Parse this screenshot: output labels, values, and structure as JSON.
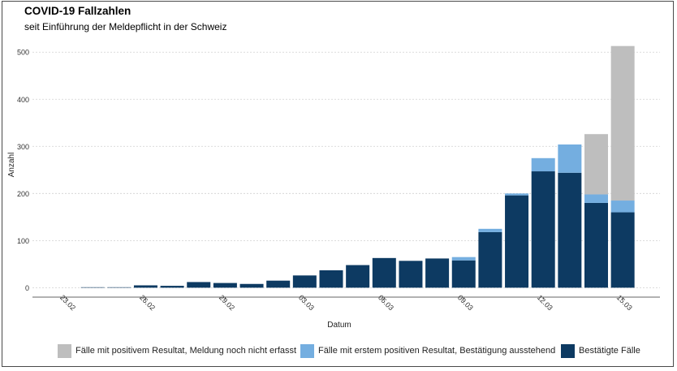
{
  "chart_data": {
    "type": "bar",
    "stacked": true,
    "title": "COVID-19 Fallzahlen",
    "subtitle": "seit Einführung der Meldepflicht in der Schweiz",
    "xlabel": "Datum",
    "ylabel": "Anzahl",
    "ylim": [
      -20,
      540
    ],
    "yticks": [
      0,
      100,
      200,
      300,
      400,
      500
    ],
    "grid": true,
    "legend_position": "bottom",
    "categories": [
      "23.02",
      "24.02",
      "25.02",
      "26.02",
      "27.02",
      "28.02",
      "29.02",
      "01.03",
      "02.03",
      "03.03",
      "04.03",
      "05.03",
      "06.03",
      "07.03",
      "08.03",
      "09.03",
      "10.03",
      "11.03",
      "12.03",
      "13.03",
      "14.03",
      "15.03"
    ],
    "xtick_labels": [
      "23.02",
      "26.02",
      "29.02",
      "03.03",
      "06.03",
      "09.03",
      "12.03",
      "15.03"
    ],
    "series": [
      {
        "name": "Bestätigte Fälle",
        "color": "#0d3a62",
        "values": [
          0,
          1,
          1,
          5,
          4,
          12,
          10,
          8,
          15,
          26,
          37,
          48,
          63,
          57,
          62,
          58,
          118,
          196,
          247,
          244,
          180,
          160
        ]
      },
      {
        "name": "Fälle mit erstem positiven Resultat, Bestätigung ausstehend",
        "color": "#74aee0",
        "values": [
          0,
          0,
          0,
          0,
          0,
          0,
          0,
          0,
          0,
          0,
          0,
          0,
          0,
          0,
          0,
          7,
          7,
          4,
          28,
          60,
          18,
          25
        ]
      },
      {
        "name": "Fälle mit positivem Resultat, Meldung noch nicht erfasst",
        "color": "#bebebe",
        "values": [
          0,
          0,
          0,
          0,
          0,
          0,
          0,
          0,
          0,
          0,
          0,
          0,
          0,
          0,
          0,
          0,
          0,
          0,
          0,
          0,
          128,
          328
        ]
      }
    ]
  },
  "legend": [
    {
      "label": "Fälle mit positivem Resultat, Meldung noch nicht erfasst",
      "color": "#bebebe"
    },
    {
      "label": "Fälle mit erstem positiven Resultat, Bestätigung ausstehend",
      "color": "#74aee0"
    },
    {
      "label": "Bestätigte Fälle",
      "color": "#0d3a62"
    }
  ]
}
